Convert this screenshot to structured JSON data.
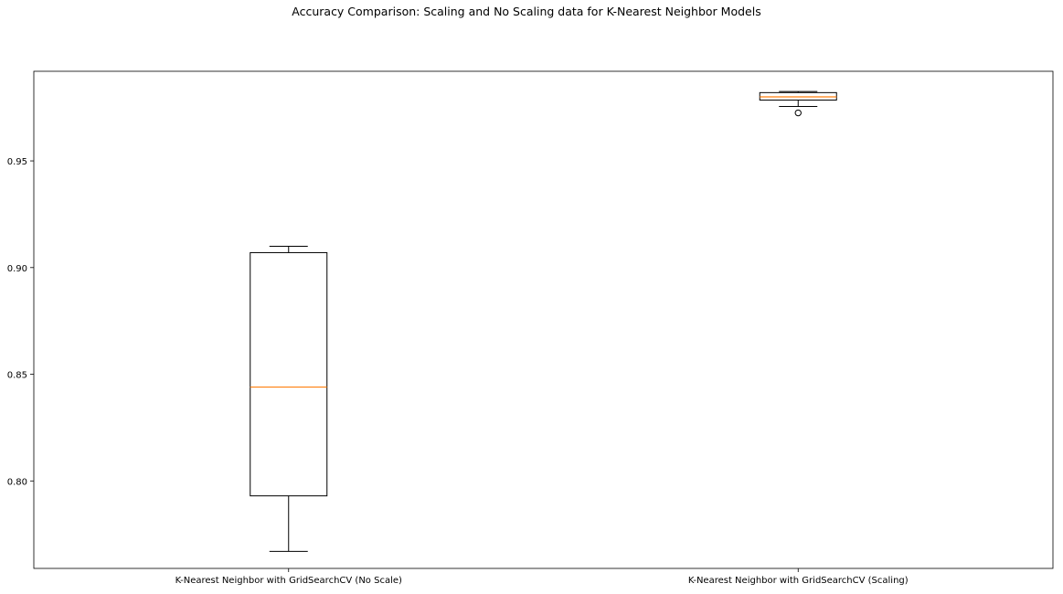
{
  "chart_data": {
    "type": "box",
    "title": "Accuracy Comparison: Scaling and No Scaling data for K-Nearest Neighbor Models",
    "xlabel": "",
    "ylabel": "",
    "ylim": [
      0.759,
      0.992
    ],
    "yticks": [
      0.8,
      0.85,
      0.9,
      0.95
    ],
    "ytick_labels": [
      "0.80",
      "0.85",
      "0.90",
      "0.95"
    ],
    "grid": false,
    "categories": [
      "K-Nearest Neighbor with GridSearchCV (No Scale)",
      "K-Nearest Neighbor with GridSearchCV (Scaling)"
    ],
    "boxes": [
      {
        "whisker_low": 0.767,
        "q1": 0.793,
        "median": 0.844,
        "q3": 0.907,
        "whisker_high": 0.91,
        "outliers": []
      },
      {
        "whisker_low": 0.9755,
        "q1": 0.9785,
        "median": 0.98,
        "q3": 0.982,
        "whisker_high": 0.9825,
        "outliers": [
          0.9725
        ]
      }
    ],
    "colors": {
      "box": "#000000",
      "median": "#ff7f0e",
      "background": "#ffffff"
    }
  }
}
